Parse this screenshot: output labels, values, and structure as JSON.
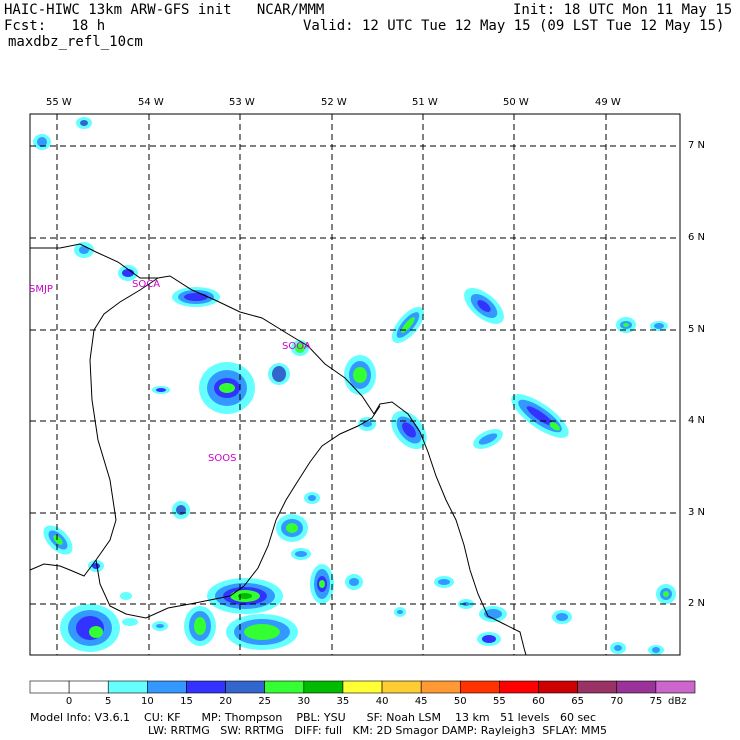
{
  "header": {
    "model_title": "HAIC-HIWC 13km ARW-GFS init",
    "org": "NCAR/MMM",
    "init": "Init: 18 UTC Mon 11 May 15",
    "fcst_label": "Fcst:",
    "fcst_value": "18 h",
    "valid": "Valid: 12 UTC Tue 12 May 15 (09 LST Tue 12 May 15)",
    "field": "maxdbz_refl_10cm"
  },
  "lon_labels": [
    "55 W",
    "54 W",
    "53 W",
    "52 W",
    "51 W",
    "50 W",
    "49 W"
  ],
  "lat_labels": [
    "7 N",
    "6 N",
    "5 N",
    "4 N",
    "3 N",
    "2 N"
  ],
  "stations": [
    "SMJP",
    "SOCA",
    "SOOA",
    "SOOS"
  ],
  "colorbar": {
    "levels": [
      "0",
      "5",
      "10",
      "15",
      "20",
      "25",
      "30",
      "35",
      "40",
      "45",
      "50",
      "55",
      "60",
      "65",
      "70",
      "75"
    ],
    "unit": "dBz",
    "colors": [
      "#ffffff",
      "#ffffff",
      "#66ffff",
      "#3399ff",
      "#3333ff",
      "#3366cc",
      "#33ff33",
      "#00bb00",
      "#ffff33",
      "#ffcc33",
      "#ff9933",
      "#ff3300",
      "#ff0000",
      "#cc0000",
      "#993366",
      "#993399",
      "#cc66cc"
    ]
  },
  "footer": {
    "line1": "Model Info: V3.6.1    CU: KF      MP: Thompson    PBL: YSU      SF: Noah LSM    13 km   51 levels   60 sec",
    "line2": "LW: RRTMG   SW: RRTMG   DIFF: full   KM: 2D Smagor DAMP: Rayleigh3  SFLAY: MM5"
  }
}
